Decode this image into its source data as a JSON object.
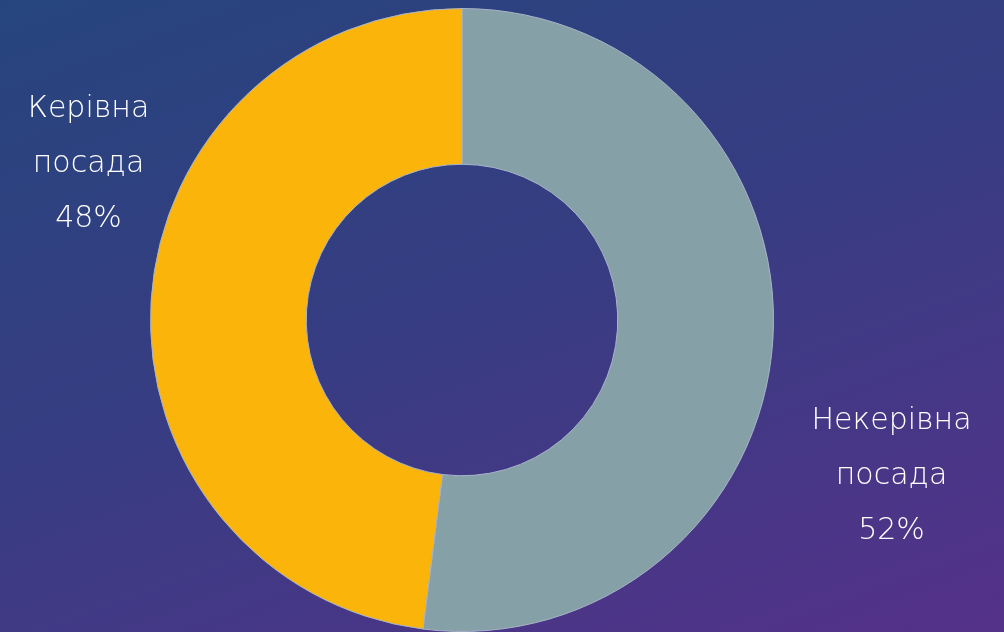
{
  "chart_data": {
    "type": "donut",
    "categories": [
      "Некерівна посада",
      "Керівна посада"
    ],
    "values": [
      52,
      48
    ],
    "colors": [
      "#86a0a8",
      "#fbb40a"
    ],
    "value_labels": [
      "52%",
      "48%"
    ],
    "legend": false
  }
}
